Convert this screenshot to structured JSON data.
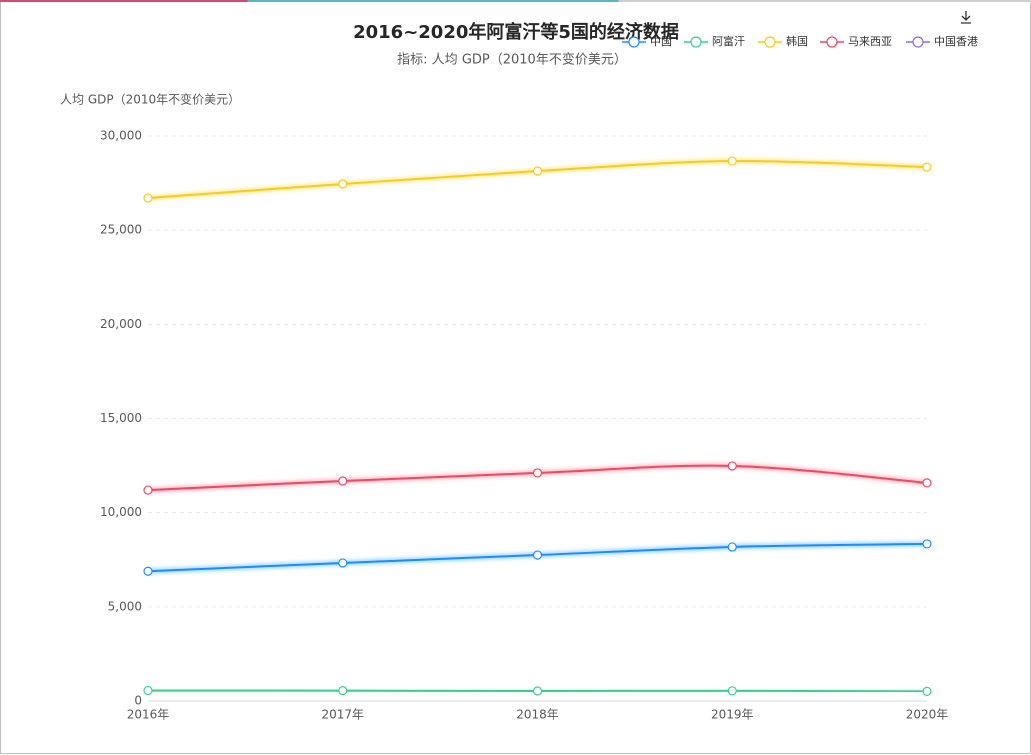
{
  "chart_data": {
    "type": "line",
    "title": "2016~2020年阿富汗等5国的经济数据",
    "subtitle": "指标: 人均 GDP（2010年不变价美元）",
    "y_label": "人均 GDP（2010年不变价美元）",
    "categories": [
      "2016年",
      "2017年",
      "2018年",
      "2019年",
      "2020年"
    ],
    "series": [
      {
        "name": "中国",
        "color": "#1890ff",
        "values": [
          6890,
          7330,
          7750,
          8180,
          8340
        ]
      },
      {
        "name": "阿富汗",
        "color": "#3ccf8e",
        "values": [
          560,
          550,
          530,
          540,
          510
        ]
      },
      {
        "name": "韩国",
        "color": "#facc14",
        "values": [
          26710,
          27450,
          28140,
          28670,
          28350
        ]
      },
      {
        "name": "马来西亚",
        "color": "#f04864",
        "values": [
          11200,
          11680,
          12110,
          12480,
          11580
        ]
      },
      {
        "name": "中国香港",
        "color": "#8c6be0",
        "values": [
          null,
          null,
          null,
          null,
          null
        ]
      }
    ],
    "ylim": [
      0,
      30000
    ],
    "yticks": [
      0,
      {
        "value": 5000,
        "label": "5,000"
      },
      {
        "value": 10000,
        "label": "10,000"
      },
      {
        "value": 15000,
        "label": "15,000"
      },
      {
        "value": 20000,
        "label": "20,000"
      },
      {
        "value": 25000,
        "label": "25,000"
      },
      {
        "value": 30000,
        "label": "30,000"
      }
    ],
    "grid": true,
    "smooth": true,
    "legend": "top-right"
  }
}
